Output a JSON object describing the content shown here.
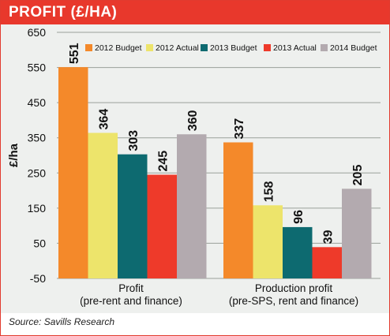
{
  "title": "PROFIT (£/HA)",
  "source": "Source: Savills Research",
  "colors": {
    "title_bar": "#e8382c",
    "plot_background": "#eef0ee",
    "grid": "#9aa09a"
  },
  "chart_data": {
    "type": "bar",
    "ylabel": "£/ha",
    "ylim": [
      -50,
      650
    ],
    "yticks": [
      650,
      550,
      450,
      350,
      250,
      150,
      50,
      -50
    ],
    "grid": true,
    "legend_position": "top-right",
    "categories": [
      [
        "Profit",
        "(pre-rent and finance)"
      ],
      [
        "Production profit",
        "(pre-SPS, rent and finance)"
      ]
    ],
    "series": [
      {
        "name": "2012 Budget",
        "color": "#f4892a",
        "values": [
          551,
          337
        ]
      },
      {
        "name": "2012 Actual",
        "color": "#ede46b",
        "values": [
          364,
          158
        ]
      },
      {
        "name": "2013 Budget",
        "color": "#0d6a70",
        "values": [
          303,
          96
        ]
      },
      {
        "name": "2013 Actual",
        "color": "#ee3a2a",
        "values": [
          245,
          39
        ]
      },
      {
        "name": "2014 Budget",
        "color": "#b3aaaf",
        "values": [
          360,
          205
        ]
      }
    ]
  }
}
